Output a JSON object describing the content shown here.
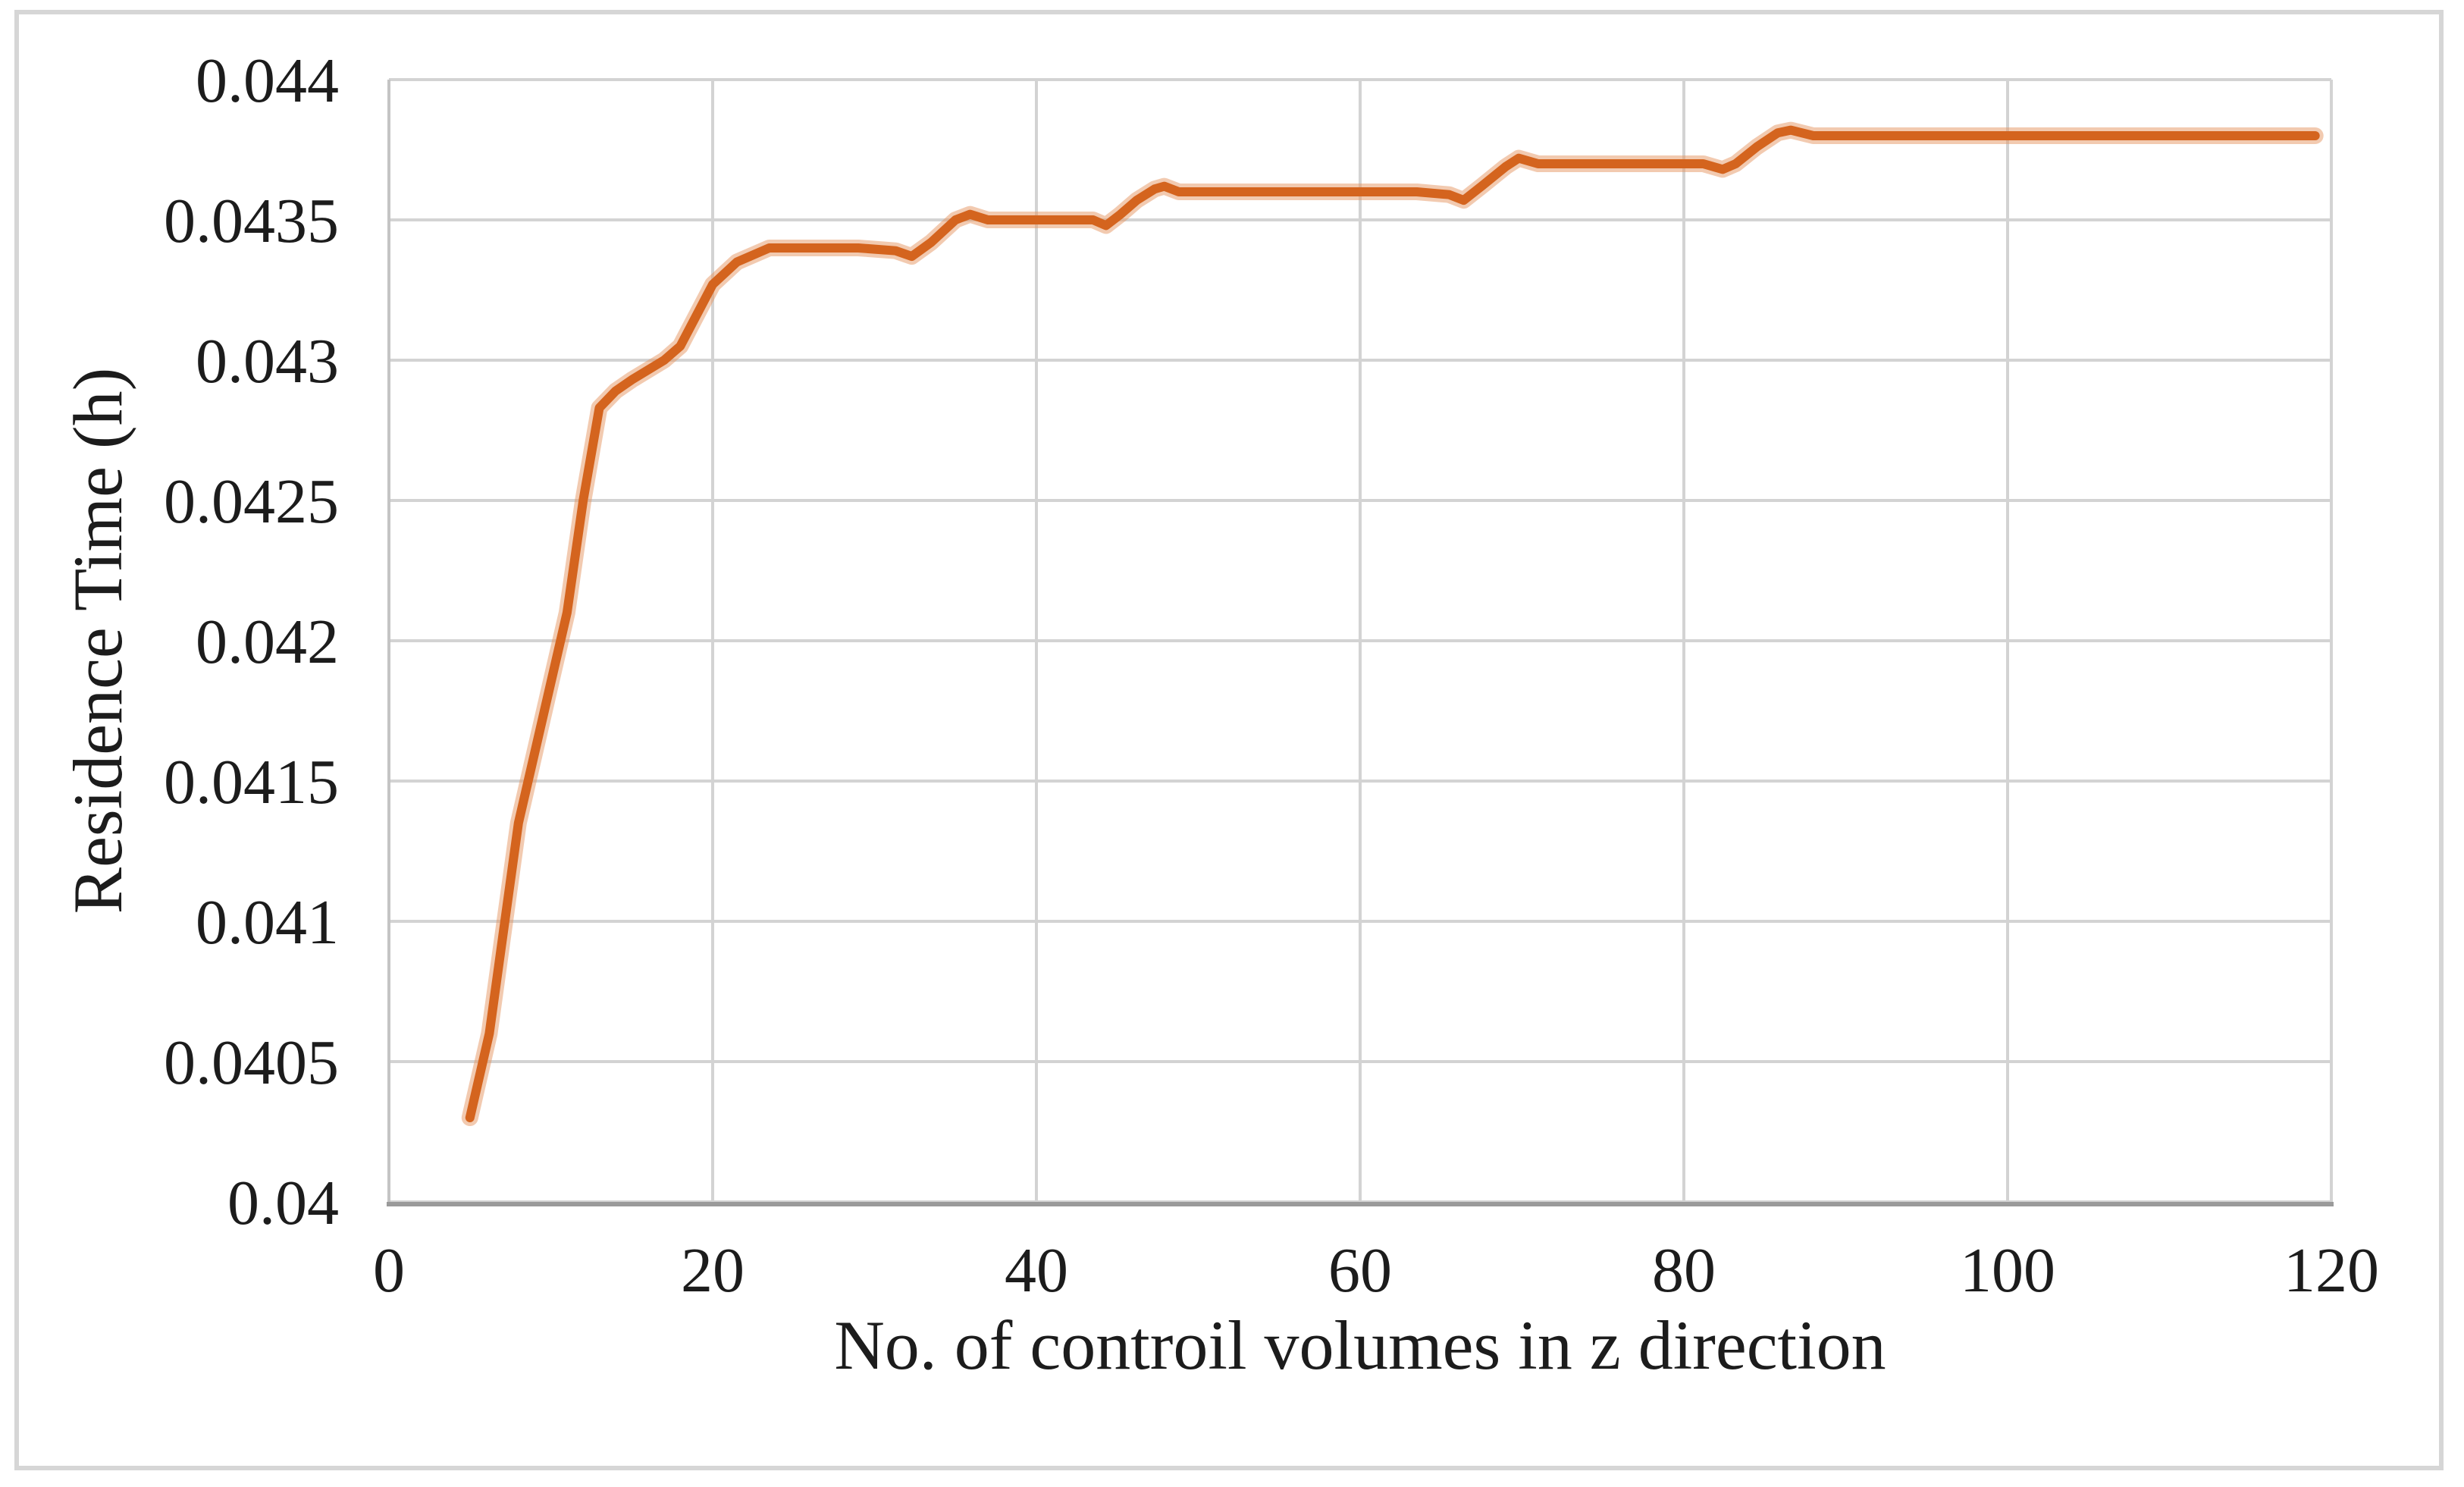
{
  "figure": {
    "background": "#ffffff",
    "border_color": "#d6d6d6",
    "gridline_color": "#d3d3d3",
    "axis_line_color": "#9a9a9a",
    "left_axis_color": "#c4c4c4",
    "text_color": "#1c1c1c"
  },
  "chart_data": {
    "type": "line",
    "title": "",
    "xlabel": "No. of controil volumes in z direction",
    "ylabel": "Residence Time (h)",
    "xlim": [
      0,
      120
    ],
    "ylim": [
      0.04,
      0.044
    ],
    "grid": true,
    "legend": false,
    "x_ticks": [
      0,
      20,
      40,
      60,
      80,
      100,
      120
    ],
    "x_tick_labels": [
      "0",
      "20",
      "40",
      "60",
      "80",
      "100",
      "120"
    ],
    "y_ticks": [
      0.044,
      0.0435,
      0.043,
      0.0425,
      0.042,
      0.0415,
      0.041,
      0.0405,
      0.04
    ],
    "y_tick_labels": [
      "0.044",
      "0.0435",
      "0.043",
      "0.0425",
      "0.042",
      "0.0415",
      "0.041",
      "0.0405",
      "0.04"
    ],
    "series": [
      {
        "name": "Residence time",
        "color": "#d4641e",
        "halo_color": "rgba(229,150,98,0.5)",
        "points": [
          [
            5,
            0.0403
          ],
          [
            6.2,
            0.0406
          ],
          [
            8,
            0.04135
          ],
          [
            10,
            0.04185
          ],
          [
            11,
            0.0421
          ],
          [
            12,
            0.0425
          ],
          [
            13,
            0.04283
          ],
          [
            14,
            0.04289
          ],
          [
            15,
            0.04293
          ],
          [
            17,
            0.043
          ],
          [
            18,
            0.04305
          ],
          [
            20,
            0.04327
          ],
          [
            21.5,
            0.04335
          ],
          [
            23.5,
            0.0434
          ],
          [
            26,
            0.0434
          ],
          [
            29,
            0.0434
          ],
          [
            31.3,
            0.04339
          ],
          [
            32.3,
            0.04337
          ],
          [
            33.5,
            0.04342
          ],
          [
            35,
            0.0435
          ],
          [
            35.9,
            0.04352
          ],
          [
            37,
            0.0435
          ],
          [
            40,
            0.0435
          ],
          [
            43.5,
            0.0435
          ],
          [
            44.3,
            0.04348
          ],
          [
            45.2,
            0.04352
          ],
          [
            46.2,
            0.04357
          ],
          [
            47.3,
            0.04361
          ],
          [
            47.9,
            0.04362
          ],
          [
            48.8,
            0.0436
          ],
          [
            52,
            0.0436
          ],
          [
            56,
            0.0436
          ],
          [
            60,
            0.0436
          ],
          [
            63.5,
            0.0436
          ],
          [
            65.5,
            0.04359
          ],
          [
            66.4,
            0.04357
          ],
          [
            67.5,
            0.04362
          ],
          [
            69,
            0.04369
          ],
          [
            69.8,
            0.04372
          ],
          [
            71,
            0.0437
          ],
          [
            74,
            0.0437
          ],
          [
            78,
            0.0437
          ],
          [
            81.2,
            0.0437
          ],
          [
            82.4,
            0.04368
          ],
          [
            83.2,
            0.0437
          ],
          [
            84.5,
            0.04376
          ],
          [
            85.8,
            0.04381
          ],
          [
            86.6,
            0.04382
          ],
          [
            88,
            0.0438
          ],
          [
            92,
            0.0438
          ],
          [
            100,
            0.0438
          ],
          [
            110,
            0.0438
          ],
          [
            119,
            0.0438
          ]
        ]
      }
    ]
  }
}
